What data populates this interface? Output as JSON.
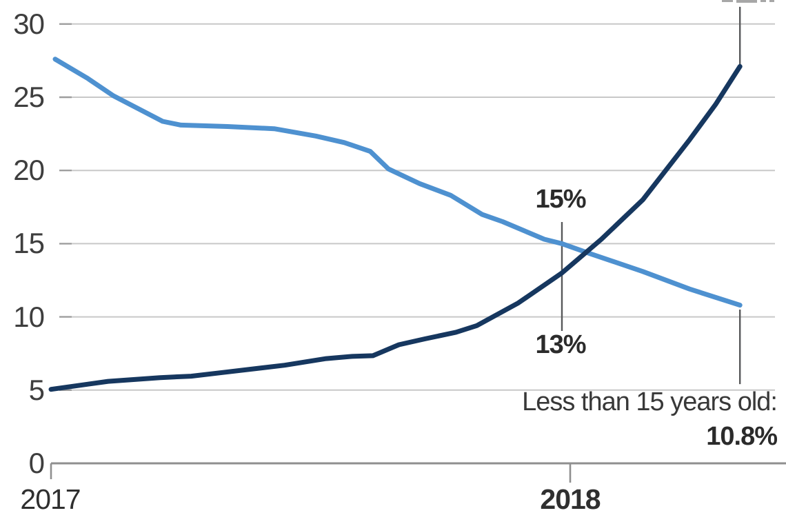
{
  "page": {
    "background": "#ffffff"
  },
  "chart_data": {
    "type": "line",
    "title": "",
    "grid": true,
    "legend": "none",
    "x_axis": {
      "tick_labels": [
        "2017",
        "2018"
      ],
      "tick_years": [
        2017,
        2018
      ]
    },
    "y_axis": {
      "tick_labels": [
        "30",
        "25",
        "20",
        "15",
        "10",
        "5",
        "0"
      ],
      "tick_values": [
        30,
        25,
        20,
        15,
        10,
        5,
        0
      ],
      "range": [
        0,
        31.5
      ]
    },
    "series": [
      {
        "name": "light-blue-declining-line",
        "color": "#4E91D0",
        "points": [
          [
            2017.008,
            27.6
          ],
          [
            2017.07,
            26.3
          ],
          [
            2017.12,
            25.1
          ],
          [
            2017.215,
            23.35
          ],
          [
            2017.25,
            23.1
          ],
          [
            2017.34,
            23.0
          ],
          [
            2017.43,
            22.85
          ],
          [
            2017.51,
            22.35
          ],
          [
            2017.565,
            21.9
          ],
          [
            2017.615,
            21.3
          ],
          [
            2017.65,
            20.1
          ],
          [
            2017.71,
            19.1
          ],
          [
            2017.77,
            18.3
          ],
          [
            2017.83,
            17.0
          ],
          [
            2017.87,
            16.5
          ],
          [
            2017.95,
            15.3
          ],
          [
            2017.984,
            15.0
          ],
          [
            2018.04,
            14.3
          ],
          [
            2018.14,
            13.1
          ],
          [
            2018.23,
            11.9
          ],
          [
            2018.327,
            10.8
          ]
        ]
      },
      {
        "name": "dark-navy-rising-line",
        "color": "#16375F",
        "points": [
          [
            2017.0,
            5.05
          ],
          [
            2017.11,
            5.6
          ],
          [
            2017.21,
            5.85
          ],
          [
            2017.27,
            5.95
          ],
          [
            2017.33,
            6.2
          ],
          [
            2017.39,
            6.45
          ],
          [
            2017.45,
            6.7
          ],
          [
            2017.53,
            7.15
          ],
          [
            2017.58,
            7.3
          ],
          [
            2017.62,
            7.35
          ],
          [
            2017.67,
            8.1
          ],
          [
            2017.72,
            8.5
          ],
          [
            2017.78,
            8.95
          ],
          [
            2017.82,
            9.4
          ],
          [
            2017.9,
            10.95
          ],
          [
            2017.984,
            13.0
          ],
          [
            2018.06,
            15.3
          ],
          [
            2018.14,
            18.0
          ],
          [
            2018.23,
            22.1
          ],
          [
            2018.28,
            24.5
          ],
          [
            2018.327,
            27.1
          ]
        ]
      }
    ],
    "markers": [
      {
        "name": "crossover-marker-line",
        "x_year": 2017.984,
        "v_top": 16.48,
        "v_bottom": 9.04
      },
      {
        "name": "navy-end-marker-line",
        "x_year": 2018.327,
        "v_top": 31.17,
        "v_bottom": 27.12
      },
      {
        "name": "blue-end-marker-line",
        "x_year": 2018.327,
        "v_top": 10.5,
        "v_bottom": 5.41
      }
    ],
    "annotations": {
      "crossover": {
        "x_year": 2017.984,
        "top_label": "15%",
        "bottom_label": "13%"
      },
      "line_end": {
        "x_year": 2018.327,
        "label": "Less than 15 years old:",
        "value": "10.8%"
      },
      "top_right_label_clipped": true
    },
    "colors": {
      "light_blue": "#4E91D0",
      "dark_navy": "#16375F",
      "gridline": "#C8C8C8",
      "tick_dash": "#9E9E9E",
      "axis": "#8F8F8F",
      "marker_line": "#58595B",
      "text": "#3B3B3B"
    }
  }
}
